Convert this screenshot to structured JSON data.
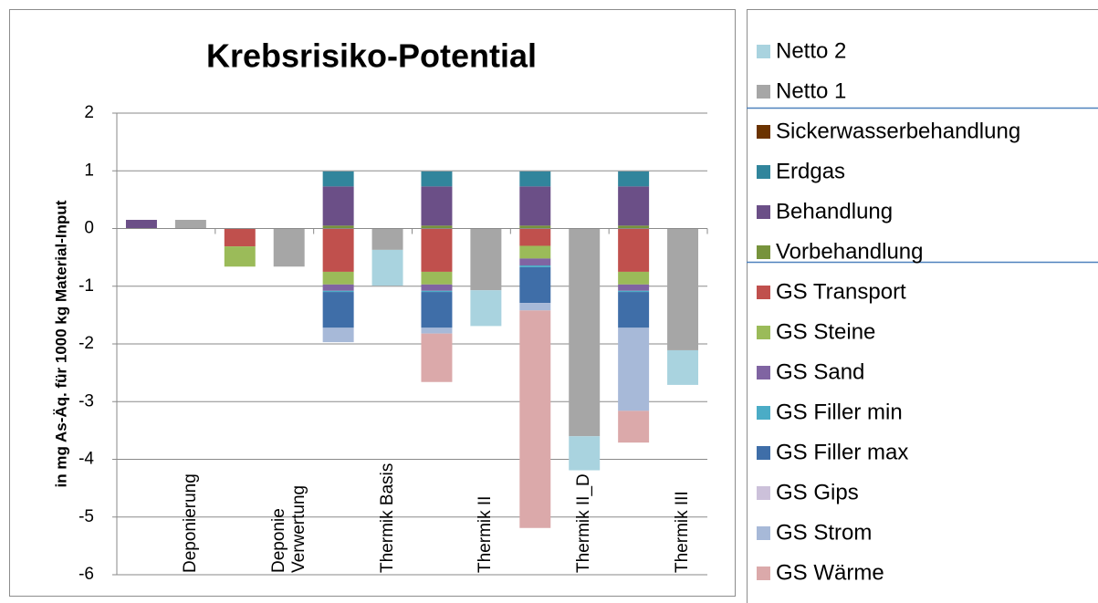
{
  "chart_data": {
    "type": "bar",
    "stacked": true,
    "title": "Krebsrisiko-Potential",
    "y_label": "in mg As-Äq. für 1000 kg Material-Input",
    "categories": [
      null,
      "Deponierung",
      null,
      "Deponie Verwertung",
      null,
      "Thermik Basis",
      null,
      "Thermik II",
      null,
      "Thermik II_D",
      null,
      "Thermik III"
    ],
    "ylim": [
      -6,
      2
    ],
    "yticks": [
      -6,
      -5,
      -4,
      -3,
      -2,
      -1,
      0,
      1,
      2
    ],
    "grid": true,
    "series": [
      {
        "name": "Vorbehandlung",
        "color": "#77933c",
        "values": [
          null,
          null,
          null,
          null,
          0.05,
          null,
          0.05,
          null,
          0.05,
          null,
          0.05,
          null
        ]
      },
      {
        "name": "Behandlung",
        "color": "#6b4f87",
        "values": [
          0.15,
          null,
          null,
          null,
          0.68,
          null,
          0.68,
          null,
          0.68,
          null,
          0.68,
          null
        ]
      },
      {
        "name": "Erdgas",
        "color": "#31859c",
        "values": [
          null,
          null,
          null,
          null,
          0.26,
          null,
          0.26,
          null,
          0.26,
          null,
          0.26,
          null
        ]
      },
      {
        "name": "Sickerwasserbehandlung",
        "color": "#6b3300",
        "values": [
          null,
          null,
          null,
          null,
          null,
          null,
          null,
          null,
          null,
          null,
          null,
          null
        ]
      },
      {
        "name": "GS Transport",
        "color": "#c0504d",
        "values": [
          null,
          null,
          -0.31,
          null,
          -0.75,
          null,
          -0.75,
          null,
          -0.3,
          null,
          -0.75,
          null
        ]
      },
      {
        "name": "GS Steine",
        "color": "#9bbb59",
        "values": [
          null,
          null,
          -0.35,
          null,
          -0.22,
          null,
          -0.22,
          null,
          -0.22,
          null,
          -0.22,
          null
        ]
      },
      {
        "name": "GS Sand",
        "color": "#8064a2",
        "values": [
          null,
          null,
          null,
          null,
          -0.11,
          null,
          -0.11,
          null,
          -0.12,
          null,
          -0.11,
          null
        ]
      },
      {
        "name": "GS Filler min",
        "color": "#4bacc6",
        "values": [
          null,
          null,
          null,
          null,
          -0.02,
          null,
          -0.02,
          null,
          -0.03,
          null,
          -0.02,
          null
        ]
      },
      {
        "name": "GS Filler max",
        "color": "#3f6ea8",
        "values": [
          null,
          null,
          null,
          null,
          -0.62,
          null,
          -0.62,
          null,
          -0.62,
          null,
          -0.62,
          null
        ]
      },
      {
        "name": "GS Gips",
        "color": "#ccc1da",
        "values": [
          null,
          null,
          null,
          null,
          null,
          null,
          null,
          null,
          null,
          null,
          null,
          null
        ]
      },
      {
        "name": "GS Strom",
        "color": "#a7b9d8",
        "values": [
          null,
          null,
          null,
          null,
          -0.25,
          null,
          -0.1,
          null,
          -0.13,
          null,
          -1.44,
          null
        ]
      },
      {
        "name": "GS Wärme",
        "color": "#dba9aa",
        "values": [
          null,
          null,
          null,
          null,
          null,
          null,
          -0.84,
          null,
          -3.77,
          null,
          -0.55,
          null
        ]
      },
      {
        "name": "Netto 1",
        "color": "#a6a6a6",
        "values": [
          null,
          0.15,
          null,
          -0.66,
          null,
          -0.37,
          null,
          -1.07,
          null,
          -3.6,
          null,
          -2.11
        ]
      },
      {
        "name": "Netto 2",
        "color": "#a9d3df",
        "values": [
          null,
          null,
          null,
          null,
          null,
          -0.62,
          null,
          -0.62,
          null,
          -0.59,
          null,
          -0.6
        ]
      }
    ]
  }
}
